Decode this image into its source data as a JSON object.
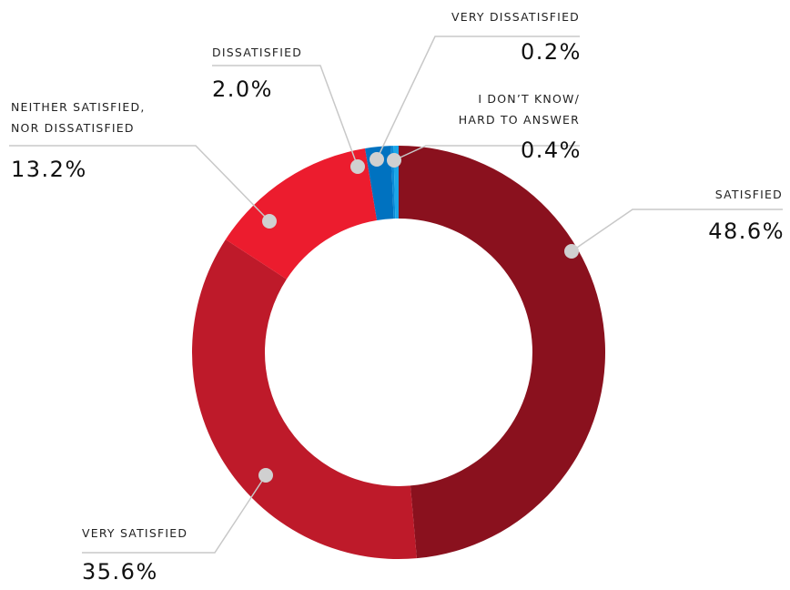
{
  "chart_data": {
    "type": "donut",
    "categories": [
      "SATISFIED",
      "VERY SATISFIED",
      "NEITHER SATISFIED,\nNOR DISSATISFIED",
      "DISSATISFIED",
      "VERY DISSATISFIED",
      "I DON’T KNOW/\nHARD TO ANSWER"
    ],
    "values": [
      48.6,
      35.6,
      13.2,
      2.0,
      0.2,
      0.4
    ],
    "value_labels": [
      "48.6%",
      "35.6%",
      "13.2%",
      "2.0%",
      "0.2%",
      "0.4%"
    ],
    "colors": [
      "#8a111e",
      "#be1a2a",
      "#ec1c2e",
      "#0072c0",
      "#0a8ad8",
      "#1aa6e8"
    ]
  }
}
